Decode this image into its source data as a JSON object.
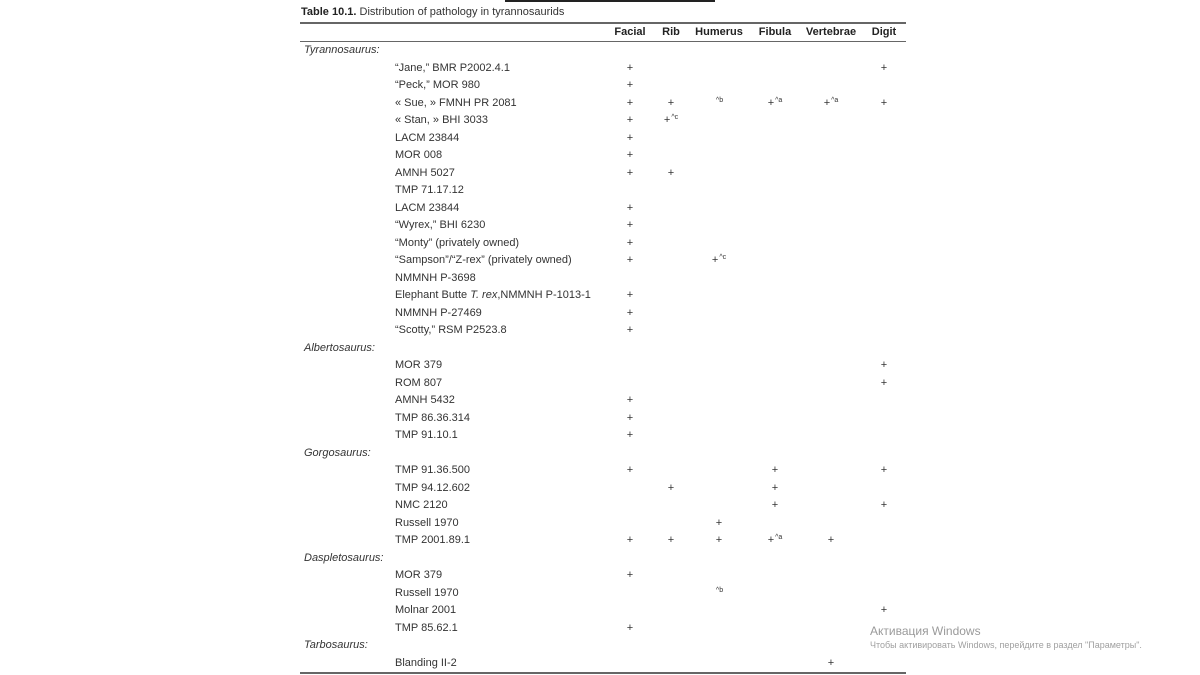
{
  "table": {
    "label": "Table 10.1.",
    "caption": "Distribution of pathology in tyrannosaurids",
    "columns": [
      "Facial",
      "Rib",
      "Humerus",
      "Fibula",
      "Vertebrae",
      "Digit"
    ],
    "groups": [
      {
        "name": "Tyrannosaurus:",
        "specimens": [
          {
            "pre": "“Jane,” BMR P2002.4.1",
            "cells": [
              "+",
              "",
              "",
              "",
              "",
              "+"
            ]
          },
          {
            "pre": "“Peck,” MOR 980",
            "cells": [
              "+",
              "",
              "",
              "",
              "",
              ""
            ]
          },
          {
            "pre": "« Sue, » FMNH PR 2081",
            "cells": [
              "+",
              "+",
              "^b",
              "+^a",
              "+^a",
              "+"
            ]
          },
          {
            "pre": "« Stan, » BHI 3033",
            "cells": [
              "+",
              "+^c",
              "",
              "",
              "",
              ""
            ]
          },
          {
            "pre": "LACM 23844",
            "cells": [
              "+",
              "",
              "",
              "",
              "",
              ""
            ]
          },
          {
            "pre": "MOR 008",
            "cells": [
              "+",
              "",
              "",
              "",
              "",
              ""
            ]
          },
          {
            "pre": "AMNH 5027",
            "cells": [
              "+",
              "+",
              "",
              "",
              "",
              ""
            ]
          },
          {
            "pre": "TMP 71.17.12",
            "cells": [
              "",
              "",
              "",
              "",
              "",
              ""
            ]
          },
          {
            "pre": "LACM 23844",
            "cells": [
              "+",
              "",
              "",
              "",
              "",
              ""
            ]
          },
          {
            "pre": "“Wyrex,” BHI 6230",
            "cells": [
              "+",
              "",
              "",
              "",
              "",
              ""
            ]
          },
          {
            "pre": "“Monty” (privately owned)",
            "cells": [
              "+",
              "",
              "",
              "",
              "",
              ""
            ]
          },
          {
            "pre": "“Sampson”/“Z-rex” (privately owned)",
            "cells": [
              "+",
              "",
              "+^c",
              "",
              "",
              ""
            ]
          },
          {
            "pre": "NMMNH P-3698",
            "cells": [
              "",
              "",
              "",
              "",
              "",
              ""
            ]
          },
          {
            "pre": "Elephant Butte ",
            "ital": "T. rex",
            "post": ",NMMNH P-1013-1",
            "cells": [
              "+",
              "",
              "",
              "",
              "",
              ""
            ]
          },
          {
            "pre": "NMMNH P-27469",
            "cells": [
              "+",
              "",
              "",
              "",
              "",
              ""
            ]
          },
          {
            "pre": "“Scotty,” RSM P2523.8",
            "cells": [
              "+",
              "",
              "",
              "",
              "",
              ""
            ]
          }
        ]
      },
      {
        "name": "Albertosaurus:",
        "specimens": [
          {
            "pre": "MOR 379",
            "cells": [
              "",
              "",
              "",
              "",
              "",
              "+"
            ]
          },
          {
            "pre": "ROM 807",
            "cells": [
              "",
              "",
              "",
              "",
              "",
              "+"
            ]
          },
          {
            "pre": "AMNH 5432",
            "cells": [
              "+",
              "",
              "",
              "",
              "",
              ""
            ]
          },
          {
            "pre": "TMP 86.36.314",
            "cells": [
              "+",
              "",
              "",
              "",
              "",
              ""
            ]
          },
          {
            "pre": "TMP 91.10.1",
            "cells": [
              "+",
              "",
              "",
              "",
              "",
              ""
            ]
          }
        ]
      },
      {
        "name": "Gorgosaurus:",
        "specimens": [
          {
            "pre": "TMP 91.36.500",
            "cells": [
              "+",
              "",
              "",
              "+",
              "",
              "+"
            ]
          },
          {
            "pre": "TMP 94.12.602",
            "cells": [
              "",
              "+",
              "",
              "+",
              "",
              ""
            ]
          },
          {
            "pre": "NMC 2120",
            "cells": [
              "",
              "",
              "",
              "+",
              "",
              "+"
            ]
          },
          {
            "pre": "Russell 1970",
            "cells": [
              "",
              "",
              "+",
              "",
              "",
              ""
            ]
          },
          {
            "pre": "TMP 2001.89.1",
            "cells": [
              "+",
              "+",
              "+",
              "+^a",
              "+",
              ""
            ]
          }
        ]
      },
      {
        "name": "Daspletosaurus:",
        "specimens": [
          {
            "pre": "MOR 379",
            "cells": [
              "+",
              "",
              "",
              "",
              "",
              ""
            ]
          },
          {
            "pre": "Russell 1970",
            "cells": [
              "",
              "",
              "^b",
              "",
              "",
              ""
            ]
          },
          {
            "pre": "Molnar 2001",
            "cells": [
              "",
              "",
              "",
              "",
              "",
              "+"
            ]
          },
          {
            "pre": "TMP 85.62.1",
            "cells": [
              "+",
              "",
              "",
              "",
              "",
              ""
            ]
          }
        ]
      },
      {
        "name": "Tarbosaurus:",
        "specimens": [
          {
            "pre": "Blanding II-2",
            "cells": [
              "",
              "",
              "",
              "",
              "+",
              ""
            ]
          }
        ]
      }
    ]
  },
  "watermark": {
    "title": "Активация Windows",
    "subtitle": "Чтобы активировать Windows, перейдите в раздел \"Параметры\"."
  }
}
